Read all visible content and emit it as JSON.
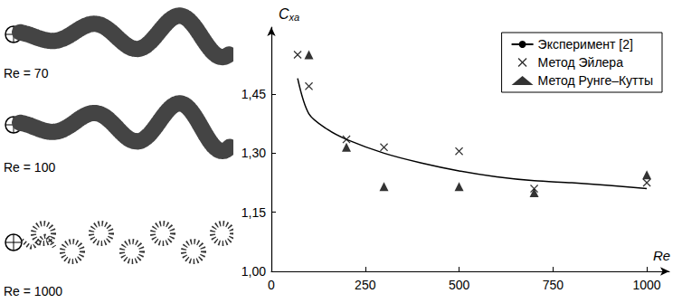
{
  "chart_data": {
    "type": "line",
    "x_label": "Re",
    "y_label": "Cxa",
    "xlim": [
      0,
      1060
    ],
    "xticks": [
      0,
      250,
      500,
      750,
      1000
    ],
    "ylim": [
      1.0,
      1.62
    ],
    "yticks": [
      {
        "value": 1.0,
        "label": "1,00"
      },
      {
        "value": 1.15,
        "label": "1,15"
      },
      {
        "value": 1.3,
        "label": "1,30"
      },
      {
        "value": 1.45,
        "label": "1,45"
      }
    ],
    "grid": false,
    "legend": "upper right",
    "annotations": [
      "Re = 70",
      "Re = 100",
      "Re = 1000"
    ],
    "series": [
      {
        "name": "Эксперимент [2]",
        "type": "line",
        "line_style": "solid",
        "color": "#000000",
        "x": [
          70,
          100,
          150,
          200,
          300,
          400,
          500,
          600,
          700,
          800,
          900,
          1000
        ],
        "values": [
          1.49,
          1.4,
          1.36,
          1.335,
          1.3,
          1.275,
          1.255,
          1.24,
          1.23,
          1.225,
          1.218,
          1.21
        ]
      },
      {
        "name": "Метод Эйлера",
        "type": "scatter",
        "marker": "x",
        "color": "#000000",
        "x": [
          70,
          100,
          200,
          300,
          500,
          700,
          1000
        ],
        "values": [
          1.55,
          1.47,
          1.335,
          1.315,
          1.305,
          1.21,
          1.225
        ]
      },
      {
        "name": "Метод Рунге–Кутты",
        "type": "scatter",
        "marker": "triangle",
        "color": "#000000",
        "x": [
          100,
          200,
          300,
          500,
          700,
          1000
        ],
        "values": [
          1.55,
          1.315,
          1.215,
          1.215,
          1.2,
          1.245
        ]
      }
    ]
  }
}
